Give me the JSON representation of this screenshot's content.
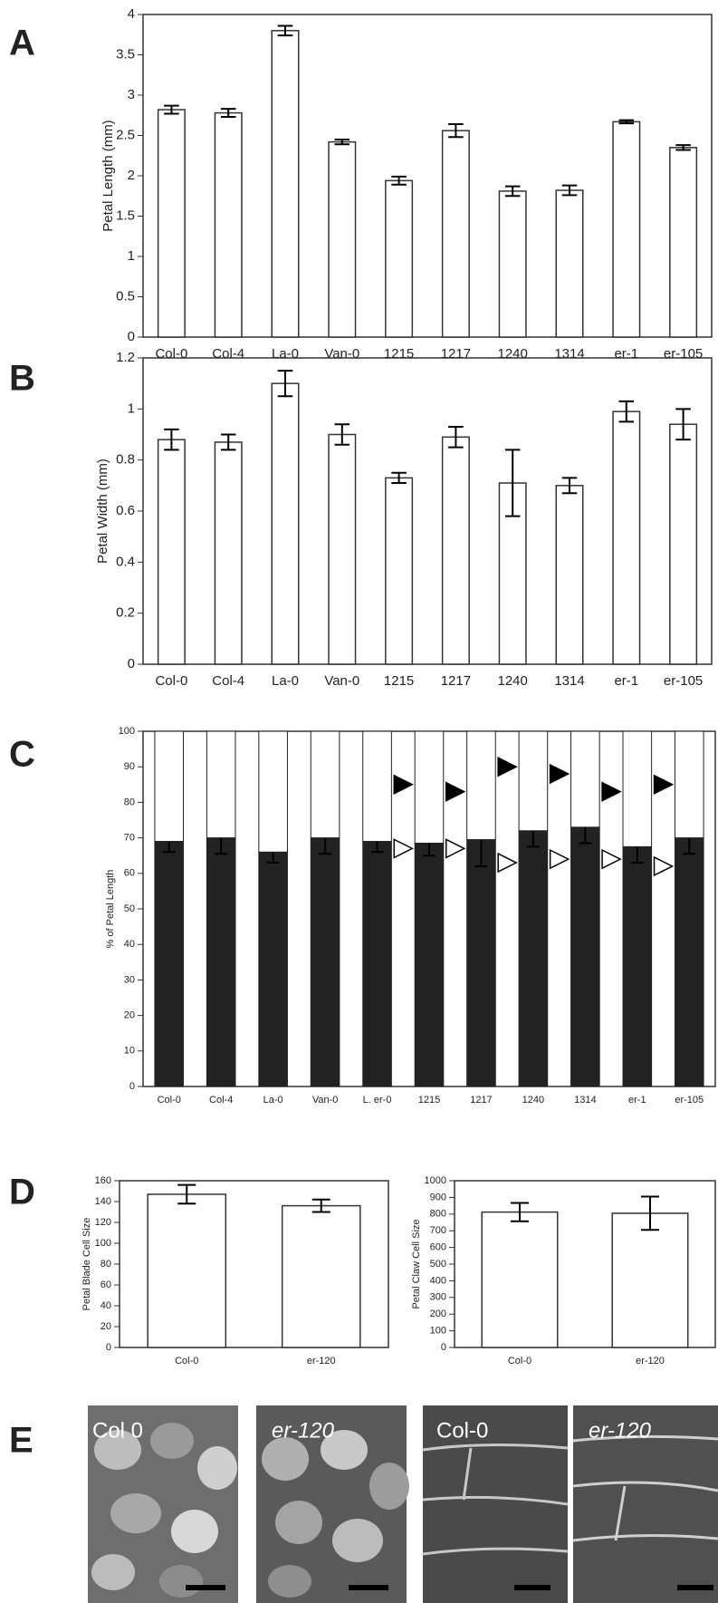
{
  "panels": [
    "A",
    "B",
    "C",
    "D",
    "E"
  ],
  "chart_data": [
    {
      "type": "bar",
      "y_label": "Petal Length (mm)",
      "categories": [
        "Col-0",
        "Col-4",
        "La-0",
        "Van-0",
        "1215",
        "1217",
        "1240",
        "1314",
        "er-1",
        "er-105"
      ],
      "values": [
        2.82,
        2.78,
        3.8,
        2.42,
        1.94,
        2.56,
        1.81,
        1.82,
        2.67,
        2.35
      ],
      "errors": [
        0.05,
        0.05,
        0.06,
        0.03,
        0.05,
        0.08,
        0.06,
        0.06,
        0.02,
        0.03
      ],
      "color": "#ffffff",
      "ylim": [
        0,
        4
      ],
      "yticks": [
        0,
        0.5,
        1,
        1.5,
        2,
        2.5,
        3,
        3.5,
        4
      ],
      "grid": false
    },
    {
      "type": "bar",
      "y_label": "Petal Width (mm)",
      "categories": [
        "Col-0",
        "Col-4",
        "La-0",
        "Van-0",
        "1215",
        "1217",
        "1240",
        "1314",
        "er-1",
        "er-105"
      ],
      "values": [
        0.88,
        0.87,
        1.1,
        0.9,
        0.73,
        0.89,
        0.71,
        0.7,
        0.99,
        0.94
      ],
      "errors": [
        0.04,
        0.03,
        0.05,
        0.04,
        0.02,
        0.04,
        0.13,
        0.03,
        0.04,
        0.06
      ],
      "color": "#ffffff",
      "ylim": [
        0,
        1.2
      ],
      "yticks": [
        0,
        0.2,
        0.4,
        0.6,
        0.8,
        1,
        1.2
      ],
      "grid": false
    },
    {
      "type": "bar",
      "stacked": true,
      "y_label": "% of Petal Length",
      "categories": [
        "Col-0",
        "Col-4",
        "La-0",
        "Van-0",
        "L. er-0",
        "1215",
        "1217",
        "1240",
        "1314",
        "er-1",
        "er-105"
      ],
      "series": [
        {
          "color": "#222222",
          "values": [
            69,
            70,
            66,
            70,
            69,
            68.5,
            69.5,
            72,
            73,
            67.5,
            70
          ],
          "errors": [
            3,
            4.5,
            3,
            4.5,
            3,
            3.5,
            7.5,
            4.5,
            4.5,
            4.5,
            4.5
          ]
        },
        {
          "color": "#ffffff",
          "values": [
            31,
            30,
            34,
            30,
            31,
            31.5,
            30.5,
            28,
            27,
            32.5,
            30
          ]
        }
      ],
      "markers": [
        {
          "shape": "filled-triangle",
          "color": "#000000",
          "values": [
            null,
            null,
            null,
            null,
            85,
            83,
            90,
            88,
            83,
            85,
            null
          ]
        },
        {
          "shape": "open-triangle",
          "color": "#000000",
          "values": [
            null,
            null,
            null,
            null,
            67,
            67,
            63,
            64,
            64,
            62,
            null
          ]
        }
      ],
      "ylim": [
        0,
        100
      ],
      "yticks": [
        0,
        10,
        20,
        30,
        40,
        50,
        60,
        70,
        80,
        90,
        100
      ],
      "grid": false
    },
    {
      "type": "bar",
      "y_label": "Petal Blade Cell Size",
      "categories": [
        "Col-0",
        "er-120"
      ],
      "values": [
        147,
        136
      ],
      "errors": [
        9,
        6
      ],
      "color": "#ffffff",
      "ylim": [
        0,
        160
      ],
      "yticks": [
        0,
        20,
        40,
        60,
        80,
        100,
        120,
        140,
        160
      ],
      "grid": false
    },
    {
      "type": "bar",
      "y_label": "Petal Claw Cell Size",
      "categories": [
        "Col-0",
        "er-120"
      ],
      "values": [
        812,
        805
      ],
      "errors": [
        55,
        100
      ],
      "color": "#ffffff",
      "ylim": [
        0,
        1000
      ],
      "yticks": [
        0,
        100,
        200,
        300,
        400,
        500,
        600,
        700,
        800,
        900,
        1000
      ],
      "grid": false
    }
  ],
  "micrographs": [
    "Col 0",
    "er-120",
    "Col-0",
    "er-120"
  ]
}
